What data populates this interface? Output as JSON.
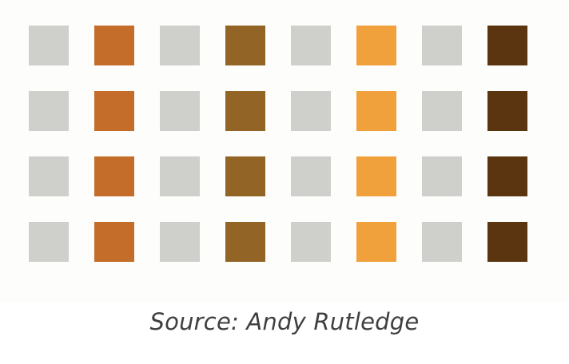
{
  "caption": "Source: Andy Rutledge",
  "grid": {
    "rows": 4,
    "columns": [
      "#cfd0cc",
      "#c46c2a",
      "#cfd0cc",
      "#926425",
      "#cfd0cc",
      "#f1a13c",
      "#cfd0cc",
      "#5b3410"
    ]
  }
}
